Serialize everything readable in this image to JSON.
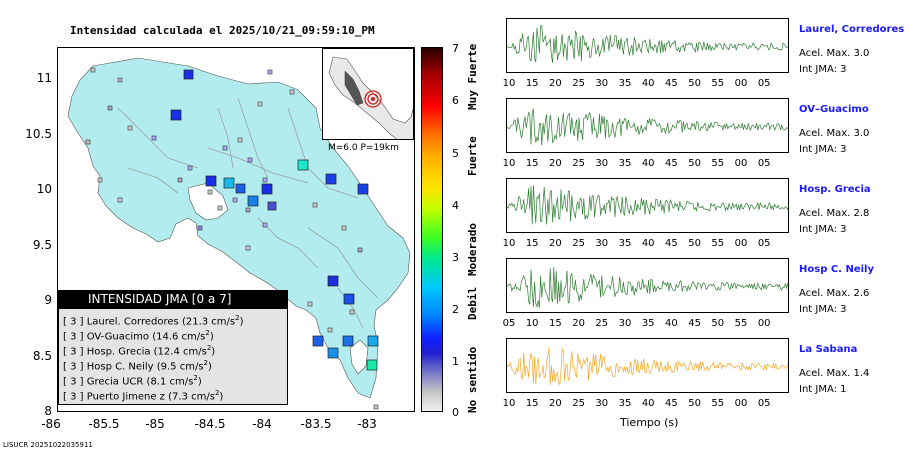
{
  "title": "Intensidad calculada el 2025/10/21_09:59:10_PM",
  "map": {
    "y_ticks": [
      "11",
      "10.5",
      "10",
      "9.5",
      "9",
      "8.5",
      "8"
    ],
    "x_ticks": [
      "-86",
      "-85.5",
      "-85",
      "-84.5",
      "-84",
      "-83.5",
      "-83"
    ],
    "land_color": "#b3ecee",
    "water_color": "#ffffff",
    "inset_label": "M=6.0 P=19km"
  },
  "legend": {
    "title": "INTENSIDAD JMA [0 a 7]",
    "rows": [
      {
        "jma": "[ 3 ]",
        "name": "Laurel. Corredores",
        "acc": "(21.3 cm/s",
        "sup": "2",
        "close": ")"
      },
      {
        "jma": "[ 3 ]",
        "name": "OV-Guacimo",
        "acc": "(14.6 cm/s",
        "sup": "2",
        "close": ")"
      },
      {
        "jma": "[ 3 ]",
        "name": "Hosp. Grecia",
        "acc": "(12.4 cm/s",
        "sup": "2",
        "close": ")"
      },
      {
        "jma": "[ 3 ]",
        "name": "Hosp C. Neily",
        "acc": "(9.5 cm/s",
        "sup": "2",
        "close": ")"
      },
      {
        "jma": "[ 3 ]",
        "name": "Grecia UCR",
        "acc": "(8.1 cm/s",
        "sup": "2",
        "close": ")"
      },
      {
        "jma": "[ 3 ]",
        "name": "Puerto Jimene z",
        "acc": "(7.3 cm/s",
        "sup": "2",
        "close": ")"
      }
    ]
  },
  "colorbar": {
    "ticks": [
      "7",
      "6",
      "5",
      "4",
      "3",
      "2",
      "1",
      "0"
    ],
    "labels": [
      "Muy Fuerte",
      "Fuerte",
      "Moderado",
      "Debil",
      "No sentido"
    ]
  },
  "stations": [
    {
      "name": "Laurel, Corredores",
      "acc": "Acel. Max. 3.0",
      "int": "Int JMA: 3",
      "color": "#2e7d32",
      "ticks": [
        "10",
        "15",
        "20",
        "25",
        "30",
        "35",
        "40",
        "45",
        "50",
        "55",
        "00",
        "05"
      ]
    },
    {
      "name": "OV–Guacimo",
      "acc": "Acel. Max. 3.0",
      "int": "Int JMA: 3",
      "color": "#2e7d32",
      "ticks": [
        "10",
        "15",
        "20",
        "25",
        "30",
        "35",
        "40",
        "45",
        "50",
        "55",
        "00",
        "05"
      ]
    },
    {
      "name": "Hosp. Grecia",
      "acc": "Acel. Max. 2.8",
      "int": "Int JMA: 3",
      "color": "#2e7d32",
      "ticks": [
        "10",
        "15",
        "20",
        "25",
        "30",
        "35",
        "40",
        "45",
        "50",
        "55",
        "00",
        "05"
      ]
    },
    {
      "name": "Hosp C. Neily",
      "acc": "Acel. Max. 2.6",
      "int": "Int JMA: 3",
      "color": "#2e7d32",
      "ticks": [
        "05",
        "10",
        "15",
        "20",
        "25",
        "30",
        "35",
        "40",
        "45",
        "50",
        "55",
        "00"
      ]
    },
    {
      "name": "La Sabana",
      "acc": "Acel. Max. 1.4",
      "int": "Int JMA: 1",
      "color": "#f5a623",
      "ticks": [
        "10",
        "15",
        "20",
        "25",
        "30",
        "35",
        "40",
        "45",
        "50",
        "55",
        "00",
        "05"
      ]
    }
  ],
  "time_axis_label": "Tiempo (s)",
  "footer": "LISUCR 20251022035911"
}
